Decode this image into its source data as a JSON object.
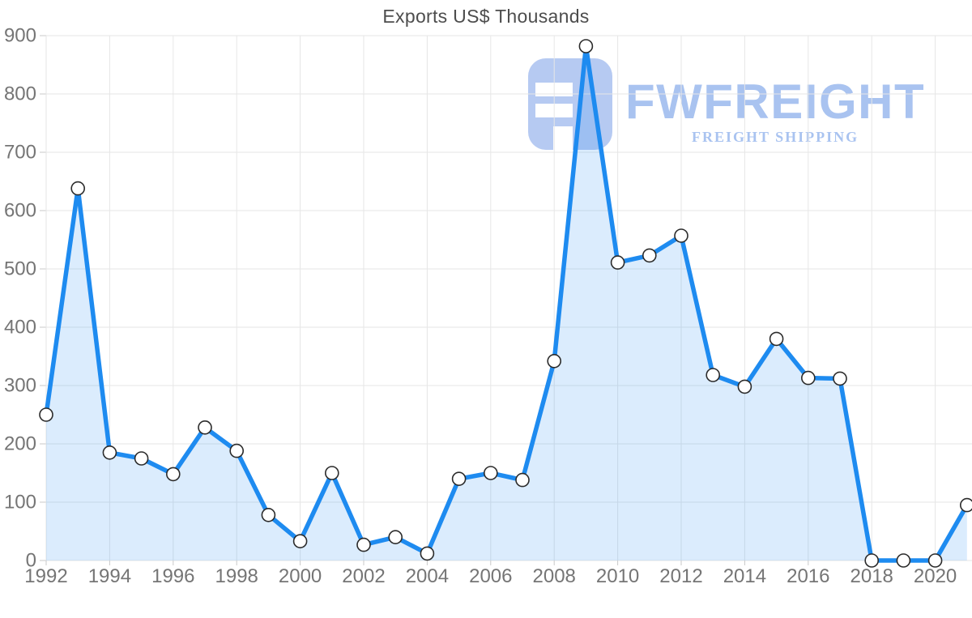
{
  "chart_data": {
    "type": "area",
    "title": "Exports US$ Thousands",
    "x": [
      1992,
      1993,
      1994,
      1995,
      1996,
      1997,
      1998,
      1999,
      2000,
      2001,
      2002,
      2003,
      2004,
      2005,
      2006,
      2007,
      2008,
      2009,
      2010,
      2011,
      2012,
      2013,
      2014,
      2015,
      2016,
      2017,
      2018,
      2019,
      2020,
      2021
    ],
    "series": [
      {
        "name": "Exports US$ Thousands",
        "values": [
          250,
          638,
          185,
          175,
          148,
          228,
          188,
          78,
          33,
          150,
          27,
          40,
          12,
          140,
          150,
          138,
          342,
          882,
          511,
          523,
          557,
          318,
          298,
          380,
          313,
          312,
          0,
          0,
          0,
          95
        ]
      }
    ],
    "ylim": [
      0,
      900
    ],
    "ytick_step": 100,
    "ytick_labels": [
      "0",
      "100",
      "200",
      "300",
      "400",
      "500",
      "600",
      "700",
      "800",
      "900"
    ],
    "xtick_labels": [
      "1992",
      "1994",
      "1996",
      "1998",
      "2000",
      "2002",
      "2004",
      "2006",
      "2008",
      "2010",
      "2012",
      "2014",
      "2016",
      "2018",
      "2020"
    ],
    "grid": true,
    "legend": "none",
    "colors": {
      "line": "#1e8bf0",
      "area_fill": "rgba(30,139,240,0.16)",
      "marker_fill": "#ffffff",
      "marker_stroke": "#2b2b2b",
      "grid": "#e6e6e6",
      "tick": "#c9c9c9",
      "axis_label": "#757575",
      "title": "#4d4d4d"
    }
  },
  "logo": {
    "brand": "FWFREIGHT",
    "subtitle": "FREIGHT SHIPPING",
    "text_color": "#a9c3f0",
    "icon_color": "#b6caf2"
  }
}
